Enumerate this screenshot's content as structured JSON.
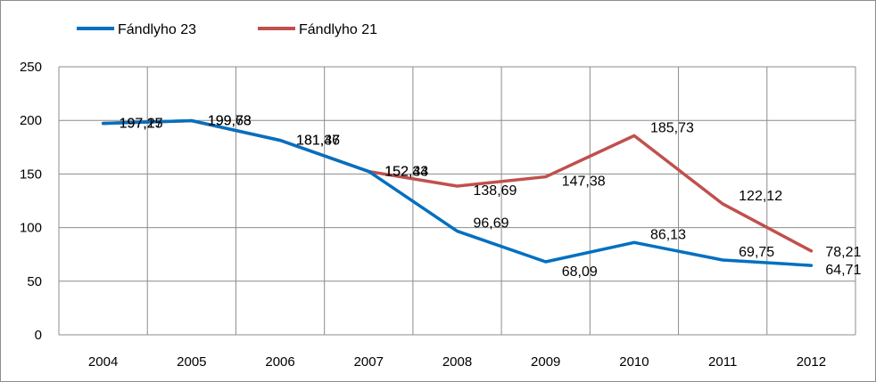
{
  "chart_data": {
    "type": "line",
    "categories": [
      "2004",
      "2005",
      "2006",
      "2007",
      "2008",
      "2009",
      "2010",
      "2011",
      "2012"
    ],
    "series": [
      {
        "name": "Fándlyho 23",
        "color": "#0070c0",
        "values": [
          197.17,
          199.78,
          181.37,
          152.43,
          96.69,
          68.09,
          86.13,
          69.75,
          64.71
        ],
        "labels": [
          "197,17",
          "199,78",
          "181,37",
          "152,43",
          "96,69",
          "68,09",
          "86,13",
          "69,75",
          "64,71"
        ]
      },
      {
        "name": "Fándlyho 21",
        "color": "#c0504d",
        "values": [
          197.25,
          199.63,
          181.46,
          152.34,
          138.69,
          147.38,
          185.73,
          122.12,
          78.21
        ],
        "labels": [
          "197,25",
          "199,63",
          "181,46",
          "152,34",
          "138,69",
          "147,38",
          "185,73",
          "122,12",
          "78,21"
        ]
      }
    ],
    "ylim": [
      0,
      250
    ],
    "yticks": [
      0,
      50,
      100,
      150,
      200,
      250
    ],
    "grid": true,
    "legend": "top-left",
    "title": "",
    "xlabel": "",
    "ylabel": ""
  }
}
